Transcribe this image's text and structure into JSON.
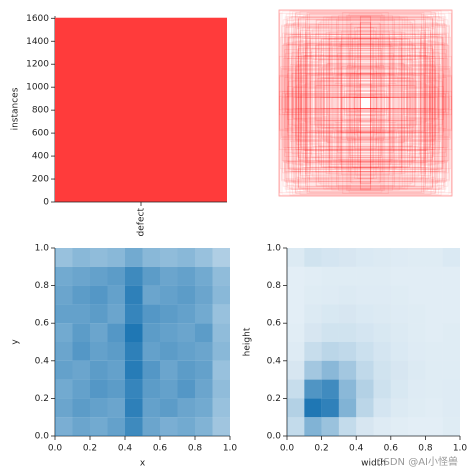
{
  "chart_data": [
    {
      "type": "bar",
      "categories": [
        "defect"
      ],
      "values": [
        1605
      ],
      "color": "#ff3b3b",
      "ylabel": "instances",
      "ylim": [
        0,
        1620
      ],
      "yticks": [
        0,
        200,
        400,
        600,
        800,
        1000,
        1200,
        1400,
        1600
      ]
    },
    {
      "type": "boxes",
      "color": "#ff0000"
    },
    {
      "type": "heatmap",
      "xlabel": "x",
      "ylabel": "y",
      "color": "#1f77b4",
      "x_bins": [
        0,
        0.1,
        0.2,
        0.3,
        0.4,
        0.5,
        0.6,
        0.7,
        0.8,
        0.9,
        1
      ],
      "y_bins": [
        0,
        0.1,
        0.2,
        0.3,
        0.4,
        0.5,
        0.6,
        0.7,
        0.8,
        0.9,
        1
      ],
      "counts": [
        [
          14,
          16,
          15,
          17,
          22,
          16,
          14,
          15,
          13,
          9
        ],
        [
          16,
          18,
          17,
          16,
          24,
          17,
          18,
          16,
          15,
          10
        ],
        [
          15,
          17,
          19,
          18,
          23,
          18,
          17,
          19,
          16,
          11
        ],
        [
          17,
          16,
          18,
          17,
          25,
          19,
          16,
          18,
          17,
          10
        ],
        [
          16,
          19,
          17,
          18,
          24,
          17,
          18,
          17,
          16,
          12
        ],
        [
          15,
          18,
          16,
          19,
          26,
          18,
          17,
          16,
          18,
          11
        ],
        [
          17,
          17,
          18,
          16,
          23,
          19,
          18,
          17,
          15,
          10
        ],
        [
          16,
          18,
          19,
          17,
          24,
          16,
          17,
          18,
          16,
          12
        ],
        [
          15,
          16,
          17,
          18,
          22,
          18,
          16,
          17,
          15,
          11
        ],
        [
          10,
          12,
          11,
          12,
          15,
          12,
          11,
          12,
          10,
          7
        ]
      ],
      "xlim": [
        0,
        1
      ],
      "ylim": [
        0,
        1
      ],
      "xticks": [
        {
          "value": 0,
          "label": "0.0"
        },
        0.2,
        0.4,
        0.6,
        0.8,
        {
          "value": 1,
          "label": "1.0"
        }
      ],
      "yticks": [
        {
          "value": 0,
          "label": "0.0"
        },
        0.2,
        0.4,
        0.6,
        0.8,
        {
          "value": 1,
          "label": "1.0"
        }
      ]
    },
    {
      "type": "heatmap",
      "xlabel": "width",
      "ylabel": "height",
      "color": "#1f77b4",
      "x_bins": [
        0,
        0.1,
        0.2,
        0.3,
        0.4,
        0.5,
        0.6,
        0.7,
        0.8,
        0.9,
        1
      ],
      "y_bins": [
        0,
        0.1,
        0.2,
        0.3,
        0.4,
        0.5,
        0.6,
        0.7,
        0.8,
        0.9,
        1
      ],
      "counts": [
        [
          20,
          60,
          45,
          20,
          8,
          4,
          2,
          1,
          1,
          3
        ],
        [
          30,
          120,
          110,
          60,
          25,
          10,
          5,
          3,
          2,
          4
        ],
        [
          18,
          90,
          100,
          55,
          30,
          14,
          7,
          4,
          3,
          4
        ],
        [
          8,
          40,
          55,
          40,
          22,
          12,
          8,
          5,
          3,
          3
        ],
        [
          4,
          18,
          25,
          22,
          15,
          10,
          6,
          4,
          3,
          3
        ],
        [
          2,
          8,
          12,
          12,
          10,
          7,
          5,
          3,
          2,
          3
        ],
        [
          1,
          5,
          7,
          8,
          6,
          5,
          4,
          3,
          2,
          2
        ],
        [
          1,
          3,
          4,
          5,
          4,
          4,
          3,
          2,
          2,
          2
        ],
        [
          1,
          2,
          3,
          3,
          3,
          3,
          2,
          2,
          2,
          2
        ],
        [
          5,
          12,
          10,
          8,
          6,
          5,
          4,
          3,
          3,
          6
        ]
      ],
      "xlim": [
        0,
        1
      ],
      "ylim": [
        0,
        1
      ],
      "xticks": [
        {
          "value": 0,
          "label": "0.0"
        },
        0.2,
        0.4,
        0.6,
        0.8,
        {
          "value": 1,
          "label": "1.0"
        }
      ],
      "yticks": [
        {
          "value": 0,
          "label": "0.0"
        },
        0.2,
        0.4,
        0.6,
        0.8,
        {
          "value": 1,
          "label": "1.0"
        }
      ],
      "watermark": "CSDN @AI小怪兽"
    }
  ]
}
